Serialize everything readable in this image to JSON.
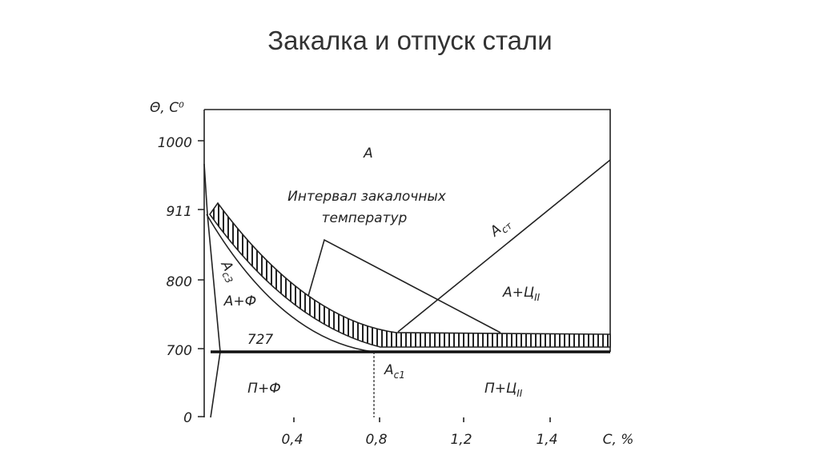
{
  "header": {
    "title": "Закалка и отпуск стали"
  },
  "diagram": {
    "y_axis": {
      "label": "Θ, С⁰",
      "ticks": [
        "1000",
        "911",
        "800",
        "700",
        "0"
      ]
    },
    "x_axis": {
      "label": "С, %",
      "ticks": [
        "0,4",
        "0,8",
        "1,2",
        "1,4"
      ]
    },
    "regions": {
      "austenite": "А",
      "interval": [
        "Интервал закалочных",
        "температур"
      ],
      "acm": {
        "main": "А",
        "sub": "ст"
      },
      "ac3": {
        "main": "А",
        "sub": "с3"
      },
      "af": "А+Ф",
      "temp727": "727",
      "ac": {
        "main": "А+Ц",
        "sub": "II"
      },
      "ac1": {
        "main": "А",
        "sub": "с1"
      },
      "pf": "П+Ф",
      "pc": {
        "main": "П+Ц",
        "sub": "II"
      }
    }
  }
}
